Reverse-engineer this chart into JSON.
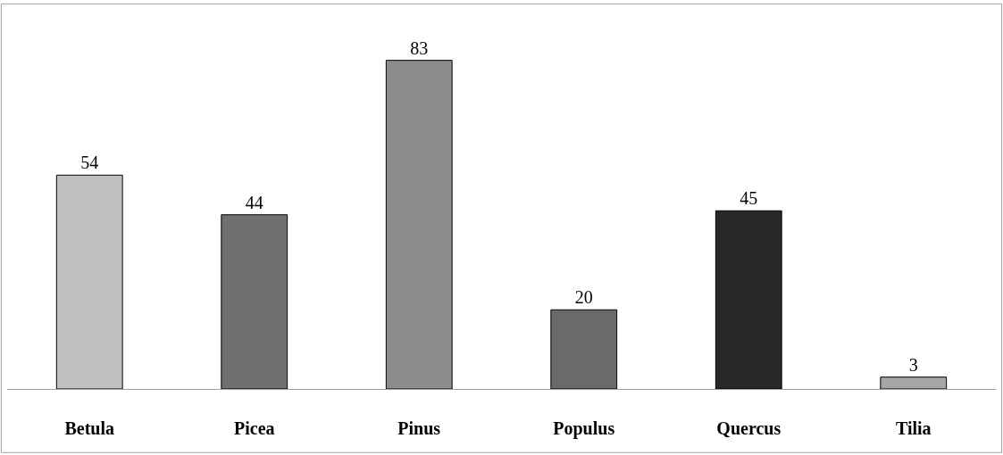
{
  "chart_data": {
    "type": "bar",
    "categories": [
      "Betula",
      "Picea",
      "Pinus",
      "Populus",
      "Quercus",
      "Tilia"
    ],
    "values": [
      54,
      44,
      83,
      20,
      45,
      3
    ],
    "colors": [
      "#c0c0c0",
      "#707070",
      "#8c8c8c",
      "#6a6a6a",
      "#282828",
      "#a6a6a6"
    ],
    "data_labels": true,
    "legend": false
  }
}
